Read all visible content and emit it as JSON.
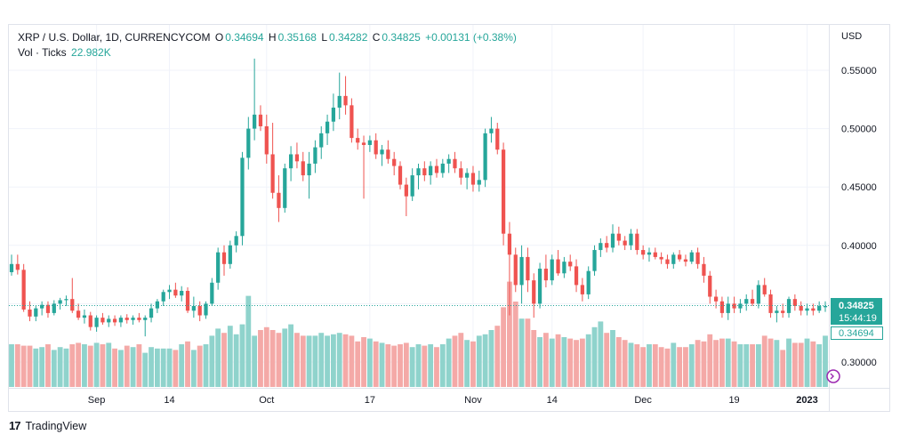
{
  "legend": {
    "symbol": "XRP / U.S. Dollar, 1D, CURRENCYCOM",
    "open_label": "O",
    "open": "0.34694",
    "high_label": "H",
    "high": "0.35168",
    "low_label": "L",
    "low": "0.34282",
    "close_label": "C",
    "close": "0.34825",
    "change": "+0.00131 (+0.38%)",
    "vol_label": "Vol · Ticks",
    "vol_value": "22.982K"
  },
  "price_axis": {
    "currency": "USD",
    "ticks": [
      "0.55000",
      "0.50000",
      "0.45000",
      "0.40000",
      "0.30000"
    ],
    "last_price": "0.34825",
    "countdown": "15:44:19",
    "open_marker": "0.34694"
  },
  "time_axis": {
    "ticks": [
      "Sep",
      "14",
      "Oct",
      "17",
      "Nov",
      "14",
      "Dec",
      "19",
      "2023"
    ]
  },
  "footer": {
    "brand": "TradingView",
    "logo": "17"
  },
  "colors": {
    "up": "#26a69a",
    "down": "#ef5350",
    "vol_up": "#8fd3cc",
    "vol_down": "#f4a9a7",
    "grid": "#f0f3fa"
  },
  "chart_data": {
    "type": "candlestick",
    "title": "XRP / U.S. Dollar, 1D, CURRENCYCOM",
    "y_unit": "USD",
    "ylim": [
      0.28,
      0.57
    ],
    "ohlc": [
      [
        0.377,
        0.392,
        0.374,
        0.384
      ],
      [
        0.384,
        0.392,
        0.375,
        0.379
      ],
      [
        0.379,
        0.384,
        0.343,
        0.345
      ],
      [
        0.345,
        0.352,
        0.335,
        0.339
      ],
      [
        0.339,
        0.348,
        0.335,
        0.346
      ],
      [
        0.346,
        0.352,
        0.34,
        0.349
      ],
      [
        0.349,
        0.352,
        0.338,
        0.342
      ],
      [
        0.342,
        0.353,
        0.34,
        0.35
      ],
      [
        0.35,
        0.355,
        0.345,
        0.353
      ],
      [
        0.353,
        0.357,
        0.348,
        0.354
      ],
      [
        0.354,
        0.372,
        0.342,
        0.344
      ],
      [
        0.344,
        0.35,
        0.336,
        0.338
      ],
      [
        0.338,
        0.345,
        0.333,
        0.34
      ],
      [
        0.34,
        0.343,
        0.327,
        0.33
      ],
      [
        0.33,
        0.34,
        0.326,
        0.338
      ],
      [
        0.338,
        0.342,
        0.332,
        0.334
      ],
      [
        0.334,
        0.34,
        0.33,
        0.337
      ],
      [
        0.337,
        0.34,
        0.331,
        0.334
      ],
      [
        0.334,
        0.34,
        0.33,
        0.338
      ],
      [
        0.338,
        0.341,
        0.333,
        0.336
      ],
      [
        0.336,
        0.34,
        0.332,
        0.338
      ],
      [
        0.338,
        0.342,
        0.334,
        0.336
      ],
      [
        0.336,
        0.34,
        0.322,
        0.338
      ],
      [
        0.338,
        0.35,
        0.334,
        0.346
      ],
      [
        0.346,
        0.354,
        0.342,
        0.352
      ],
      [
        0.352,
        0.362,
        0.348,
        0.36
      ],
      [
        0.36,
        0.366,
        0.354,
        0.362
      ],
      [
        0.362,
        0.368,
        0.355,
        0.357
      ],
      [
        0.357,
        0.365,
        0.352,
        0.361
      ],
      [
        0.361,
        0.364,
        0.342,
        0.344
      ],
      [
        0.344,
        0.356,
        0.338,
        0.348
      ],
      [
        0.348,
        0.352,
        0.335,
        0.34
      ],
      [
        0.34,
        0.352,
        0.337,
        0.35
      ],
      [
        0.35,
        0.372,
        0.348,
        0.368
      ],
      [
        0.368,
        0.398,
        0.362,
        0.394
      ],
      [
        0.394,
        0.4,
        0.374,
        0.384
      ],
      [
        0.384,
        0.404,
        0.38,
        0.4
      ],
      [
        0.4,
        0.412,
        0.394,
        0.408
      ],
      [
        0.408,
        0.48,
        0.4,
        0.475
      ],
      [
        0.475,
        0.51,
        0.465,
        0.5
      ],
      [
        0.5,
        0.56,
        0.49,
        0.512
      ],
      [
        0.512,
        0.52,
        0.498,
        0.502
      ],
      [
        0.502,
        0.512,
        0.47,
        0.478
      ],
      [
        0.478,
        0.505,
        0.44,
        0.445
      ],
      [
        0.445,
        0.46,
        0.42,
        0.432
      ],
      [
        0.432,
        0.47,
        0.428,
        0.466
      ],
      [
        0.466,
        0.485,
        0.455,
        0.478
      ],
      [
        0.478,
        0.488,
        0.466,
        0.472
      ],
      [
        0.472,
        0.48,
        0.455,
        0.46
      ],
      [
        0.46,
        0.48,
        0.44,
        0.47
      ],
      [
        0.47,
        0.49,
        0.462,
        0.484
      ],
      [
        0.484,
        0.502,
        0.474,
        0.496
      ],
      [
        0.496,
        0.512,
        0.486,
        0.506
      ],
      [
        0.506,
        0.53,
        0.498,
        0.518
      ],
      [
        0.518,
        0.548,
        0.508,
        0.528
      ],
      [
        0.528,
        0.545,
        0.512,
        0.52
      ],
      [
        0.52,
        0.526,
        0.488,
        0.492
      ],
      [
        0.492,
        0.5,
        0.482,
        0.488
      ],
      [
        0.488,
        0.494,
        0.44,
        0.486
      ],
      [
        0.486,
        0.494,
        0.48,
        0.49
      ],
      [
        0.49,
        0.496,
        0.474,
        0.478
      ],
      [
        0.478,
        0.486,
        0.468,
        0.482
      ],
      [
        0.482,
        0.49,
        0.47,
        0.474
      ],
      [
        0.474,
        0.48,
        0.46,
        0.468
      ],
      [
        0.468,
        0.472,
        0.448,
        0.452
      ],
      [
        0.452,
        0.458,
        0.425,
        0.442
      ],
      [
        0.442,
        0.466,
        0.438,
        0.46
      ],
      [
        0.46,
        0.47,
        0.448,
        0.466
      ],
      [
        0.466,
        0.472,
        0.455,
        0.46
      ],
      [
        0.46,
        0.472,
        0.452,
        0.468
      ],
      [
        0.468,
        0.474,
        0.458,
        0.462
      ],
      [
        0.462,
        0.474,
        0.458,
        0.47
      ],
      [
        0.47,
        0.478,
        0.462,
        0.474
      ],
      [
        0.474,
        0.48,
        0.462,
        0.466
      ],
      [
        0.466,
        0.472,
        0.452,
        0.458
      ],
      [
        0.458,
        0.466,
        0.448,
        0.462
      ],
      [
        0.462,
        0.468,
        0.446,
        0.452
      ],
      [
        0.452,
        0.464,
        0.446,
        0.456
      ],
      [
        0.456,
        0.5,
        0.45,
        0.496
      ],
      [
        0.496,
        0.51,
        0.488,
        0.5
      ],
      [
        0.5,
        0.505,
        0.478,
        0.482
      ],
      [
        0.482,
        0.488,
        0.4,
        0.41
      ],
      [
        0.41,
        0.42,
        0.34,
        0.392
      ],
      [
        0.392,
        0.398,
        0.36,
        0.366
      ],
      [
        0.366,
        0.4,
        0.35,
        0.39
      ],
      [
        0.39,
        0.398,
        0.36,
        0.37
      ],
      [
        0.37,
        0.376,
        0.338,
        0.35
      ],
      [
        0.35,
        0.385,
        0.346,
        0.38
      ],
      [
        0.38,
        0.392,
        0.364,
        0.37
      ],
      [
        0.37,
        0.392,
        0.366,
        0.388
      ],
      [
        0.388,
        0.396,
        0.374,
        0.376
      ],
      [
        0.376,
        0.39,
        0.372,
        0.386
      ],
      [
        0.386,
        0.392,
        0.378,
        0.382
      ],
      [
        0.382,
        0.388,
        0.36,
        0.366
      ],
      [
        0.366,
        0.372,
        0.352,
        0.358
      ],
      [
        0.358,
        0.382,
        0.354,
        0.378
      ],
      [
        0.378,
        0.4,
        0.374,
        0.396
      ],
      [
        0.396,
        0.406,
        0.39,
        0.402
      ],
      [
        0.402,
        0.408,
        0.394,
        0.398
      ],
      [
        0.398,
        0.418,
        0.394,
        0.41
      ],
      [
        0.41,
        0.416,
        0.4,
        0.404
      ],
      [
        0.404,
        0.408,
        0.396,
        0.4
      ],
      [
        0.4,
        0.414,
        0.396,
        0.41
      ],
      [
        0.41,
        0.414,
        0.392,
        0.396
      ],
      [
        0.396,
        0.4,
        0.388,
        0.392
      ],
      [
        0.392,
        0.398,
        0.386,
        0.394
      ],
      [
        0.394,
        0.398,
        0.388,
        0.39
      ],
      [
        0.39,
        0.394,
        0.384,
        0.388
      ],
      [
        0.388,
        0.392,
        0.38,
        0.384
      ],
      [
        0.384,
        0.394,
        0.38,
        0.392
      ],
      [
        0.392,
        0.396,
        0.386,
        0.388
      ],
      [
        0.388,
        0.392,
        0.382,
        0.386
      ],
      [
        0.386,
        0.396,
        0.384,
        0.394
      ],
      [
        0.394,
        0.398,
        0.38,
        0.384
      ],
      [
        0.384,
        0.39,
        0.368,
        0.374
      ],
      [
        0.374,
        0.378,
        0.35,
        0.356
      ],
      [
        0.356,
        0.362,
        0.346,
        0.352
      ],
      [
        0.352,
        0.356,
        0.338,
        0.342
      ],
      [
        0.342,
        0.356,
        0.336,
        0.35
      ],
      [
        0.35,
        0.356,
        0.342,
        0.346
      ],
      [
        0.346,
        0.354,
        0.342,
        0.35
      ],
      [
        0.35,
        0.358,
        0.344,
        0.354
      ],
      [
        0.354,
        0.362,
        0.348,
        0.35
      ],
      [
        0.35,
        0.37,
        0.346,
        0.366
      ],
      [
        0.366,
        0.372,
        0.356,
        0.358
      ],
      [
        0.358,
        0.362,
        0.338,
        0.342
      ],
      [
        0.342,
        0.348,
        0.334,
        0.344
      ],
      [
        0.344,
        0.35,
        0.338,
        0.342
      ],
      [
        0.342,
        0.356,
        0.338,
        0.354
      ],
      [
        0.354,
        0.358,
        0.344,
        0.348
      ],
      [
        0.348,
        0.352,
        0.34,
        0.344
      ],
      [
        0.344,
        0.35,
        0.34,
        0.346
      ],
      [
        0.346,
        0.35,
        0.34,
        0.344
      ],
      [
        0.344,
        0.352,
        0.342,
        0.348
      ],
      [
        0.347,
        0.352,
        0.343,
        0.348
      ]
    ],
    "volume": [
      0.3,
      0.3,
      0.29,
      0.29,
      0.27,
      0.28,
      0.3,
      0.26,
      0.28,
      0.27,
      0.3,
      0.31,
      0.3,
      0.29,
      0.31,
      0.3,
      0.31,
      0.27,
      0.26,
      0.29,
      0.28,
      0.3,
      0.24,
      0.28,
      0.27,
      0.27,
      0.27,
      0.26,
      0.3,
      0.32,
      0.26,
      0.29,
      0.3,
      0.36,
      0.41,
      0.38,
      0.43,
      0.37,
      0.44,
      0.64,
      0.36,
      0.4,
      0.42,
      0.4,
      0.38,
      0.41,
      0.44,
      0.38,
      0.36,
      0.36,
      0.36,
      0.38,
      0.36,
      0.37,
      0.38,
      0.37,
      0.36,
      0.32,
      0.35,
      0.34,
      0.32,
      0.31,
      0.3,
      0.29,
      0.3,
      0.31,
      0.28,
      0.3,
      0.29,
      0.3,
      0.28,
      0.3,
      0.34,
      0.36,
      0.38,
      0.33,
      0.32,
      0.36,
      0.37,
      0.4,
      0.43,
      0.56,
      0.74,
      0.6,
      0.48,
      0.48,
      0.4,
      0.35,
      0.38,
      0.34,
      0.37,
      0.35,
      0.34,
      0.33,
      0.34,
      0.37,
      0.42,
      0.46,
      0.38,
      0.4,
      0.35,
      0.33,
      0.31,
      0.3,
      0.28,
      0.3,
      0.3,
      0.28,
      0.27,
      0.31,
      0.28,
      0.28,
      0.3,
      0.33,
      0.32,
      0.37,
      0.33,
      0.34,
      0.34,
      0.32,
      0.3,
      0.3,
      0.3,
      0.3,
      0.36,
      0.34,
      0.33,
      0.26,
      0.34,
      0.31,
      0.31,
      0.34,
      0.32,
      0.3,
      0.36
    ],
    "volume_unit": "relative"
  }
}
